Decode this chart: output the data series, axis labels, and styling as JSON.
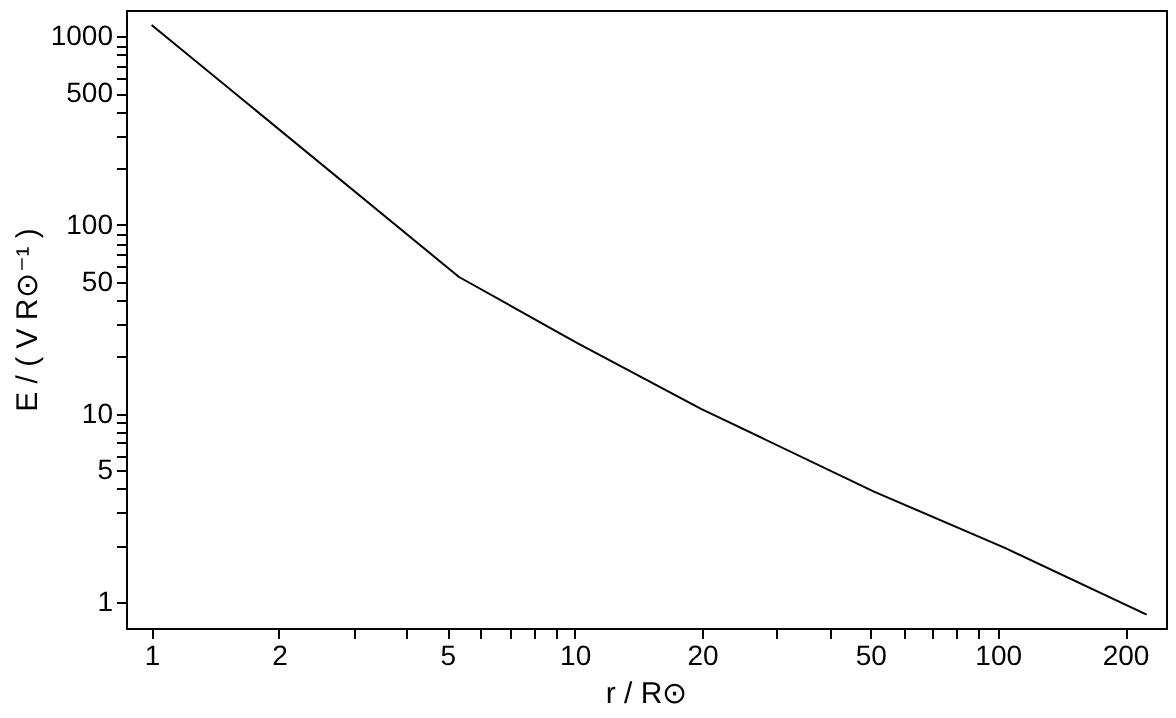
{
  "chart_data": {
    "type": "line",
    "xlabel": "r / R⊙",
    "ylabel": "E / ( V R⊙⁻¹ )",
    "x": [
      1.0,
      5.33,
      10.1,
      19.9,
      51,
      104,
      225
    ],
    "series": [
      {
        "color": "#000000",
        "values": [
          1150,
          53,
          23.8,
          10.6,
          3.86,
          1.94,
          0.86
        ]
      }
    ],
    "log": "xy",
    "xlim": [
      0.87,
      250
    ],
    "ylim": [
      0.73,
      1380
    ],
    "xticks": [
      1,
      2,
      {
        "value": 3,
        "label": null
      },
      {
        "value": 4,
        "label": null
      },
      5,
      {
        "value": 6,
        "label": null
      },
      {
        "value": 7,
        "label": null
      },
      {
        "value": 8,
        "label": null
      },
      {
        "value": 9,
        "label": null
      },
      10,
      20,
      {
        "value": 30,
        "label": null
      },
      {
        "value": 40,
        "label": null
      },
      50,
      {
        "value": 60,
        "label": null
      },
      {
        "value": 70,
        "label": null
      },
      {
        "value": 80,
        "label": null
      },
      {
        "value": 90,
        "label": null
      },
      100,
      200
    ],
    "yticks": [
      1,
      {
        "value": 2,
        "label": null
      },
      {
        "value": 3,
        "label": null
      },
      {
        "value": 4,
        "label": null
      },
      5,
      {
        "value": 6,
        "label": null
      },
      {
        "value": 7,
        "label": null
      },
      {
        "value": 8,
        "label": null
      },
      {
        "value": 9,
        "label": null
      },
      10,
      {
        "value": 20,
        "label": null
      },
      {
        "value": 30,
        "label": null
      },
      {
        "value": 40,
        "label": null
      },
      50,
      {
        "value": 60,
        "label": null
      },
      {
        "value": 70,
        "label": null
      },
      {
        "value": 80,
        "label": null
      },
      {
        "value": 90,
        "label": null
      },
      100,
      {
        "value": 200,
        "label": null
      },
      {
        "value": 300,
        "label": null
      },
      {
        "value": 400,
        "label": null
      },
      500,
      {
        "value": 600,
        "label": null
      },
      {
        "value": 700,
        "label": null
      },
      {
        "value": 800,
        "label": null
      },
      {
        "value": 900,
        "label": null
      },
      1000
    ],
    "grid": false,
    "marker": "none",
    "line_style": "solid"
  }
}
